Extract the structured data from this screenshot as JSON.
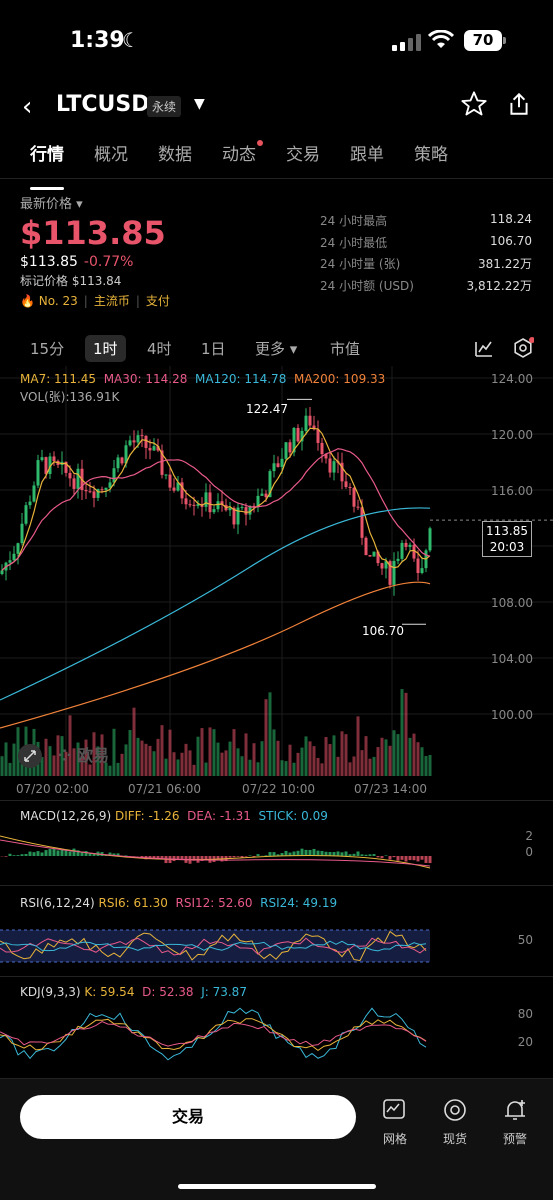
{
  "status": {
    "time": "1:39",
    "battery": "70"
  },
  "header": {
    "symbol": "LTCUSD",
    "badge": "永续"
  },
  "tabs": [
    {
      "label": "行情",
      "active": true
    },
    {
      "label": "概况"
    },
    {
      "label": "数据"
    },
    {
      "label": "动态",
      "dot": true
    },
    {
      "label": "交易"
    },
    {
      "label": "跟单"
    },
    {
      "label": "策略"
    }
  ],
  "price": {
    "label": "最新价格",
    "big": "$113.85",
    "sub": "$113.85",
    "change": "-0.77%",
    "mark": "标记价格 $113.84",
    "rank": "No. 23",
    "tag1": "主流币",
    "tag2": "支付"
  },
  "stats": [
    {
      "k": "24 小时最高",
      "v": "118.24"
    },
    {
      "k": "24 小时最低",
      "v": "106.70"
    },
    {
      "k": "24 小时量 (张)",
      "v": "381.22万"
    },
    {
      "k": "24 小时额 (USD)",
      "v": "3,812.22万"
    }
  ],
  "timeframes": [
    "15分",
    "1时",
    "4时",
    "1日",
    "更多",
    "市值"
  ],
  "legend": {
    "ma7": "MA7: 111.45",
    "ma30": "MA30: 114.28",
    "ma120": "MA120: 114.78",
    "ma200": "MA200: 109.33",
    "vol": "VOL(张):136.91K"
  },
  "chart_data": {
    "type": "line",
    "y_axis": [
      "124.00",
      "120.00",
      "116.00",
      "112.00",
      "108.00",
      "104.00",
      "100.00"
    ],
    "x_axis": [
      "07/20 02:00",
      "07/21 06:00",
      "07/22 10:00",
      "07/23 14:00"
    ],
    "high_label": "122.47",
    "low_label": "106.70",
    "last_price": "113.85",
    "countdown": "20:03"
  },
  "macd": {
    "title": "MACD(12,26,9)",
    "diff": "DIFF: -1.26",
    "dea": "DEA: -1.31",
    "stick": "STICK: 0.09",
    "axis": [
      "2",
      "0"
    ]
  },
  "rsi": {
    "title": "RSI(6,12,24)",
    "r6": "RSI6: 61.30",
    "r12": "RSI12: 52.60",
    "r24": "RSI24: 49.19",
    "axis": "50"
  },
  "kdj": {
    "title": "KDJ(9,3,3)",
    "k": "K: 59.54",
    "d": "D: 52.38",
    "j": "J: 73.87",
    "axis": [
      "80",
      "20"
    ]
  },
  "watermark": "欧易",
  "bottom": {
    "trade": "交易",
    "grid": "网格",
    "spot": "现货",
    "alert": "预警"
  }
}
